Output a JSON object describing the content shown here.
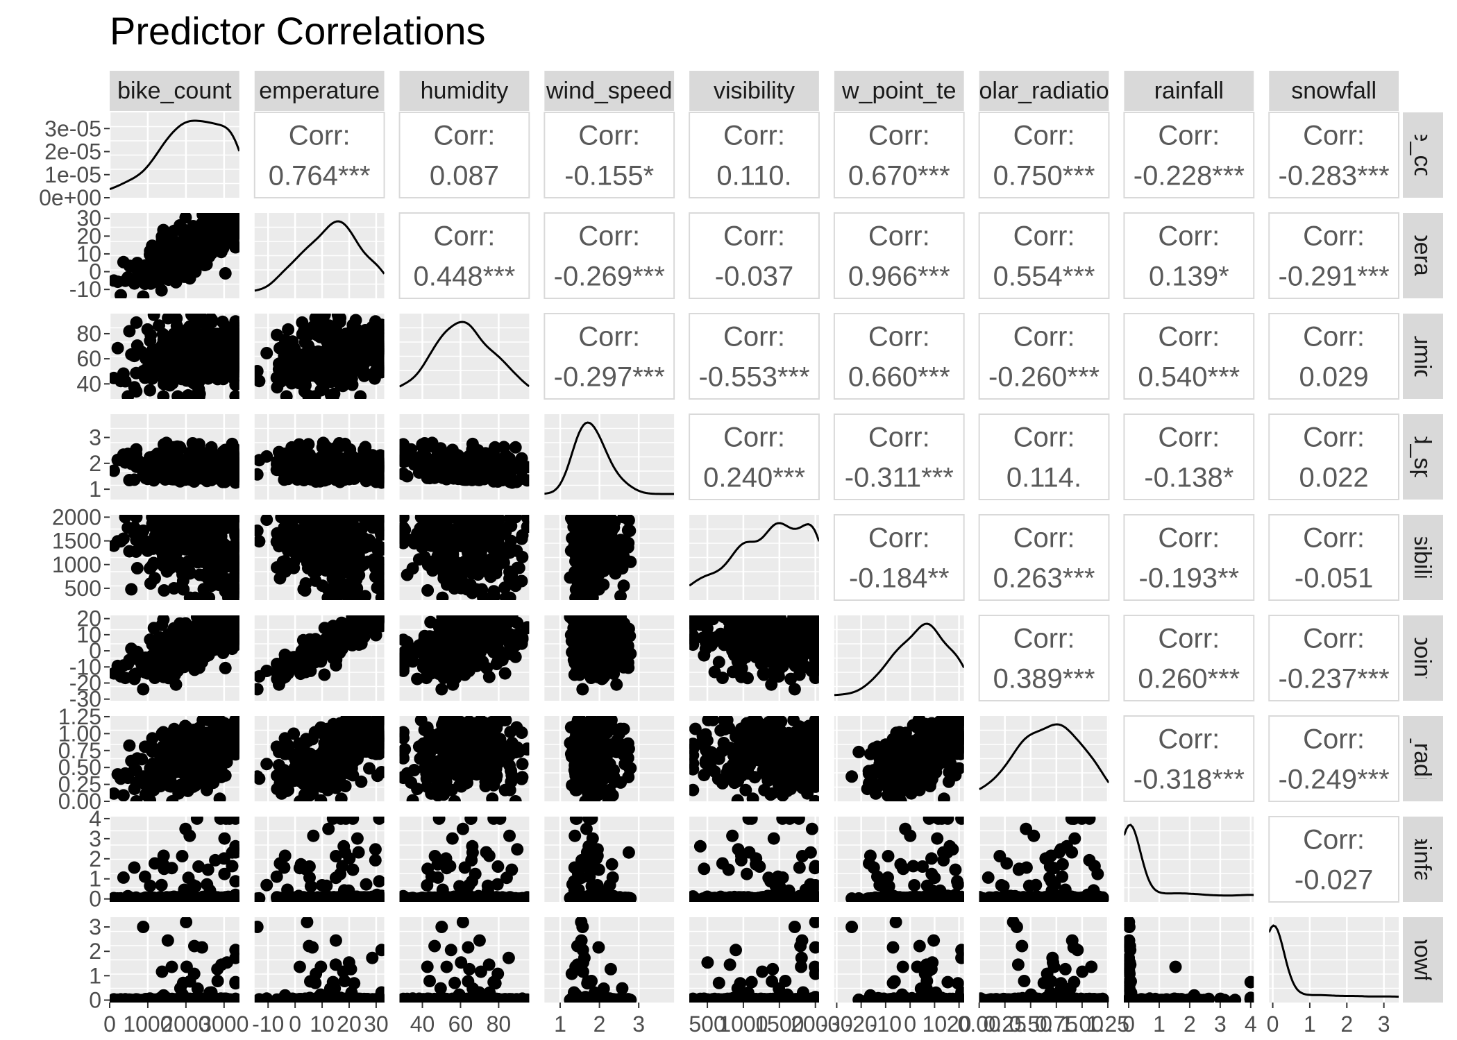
{
  "title": "Predictor Correlations",
  "chart_data": {
    "type": "scatter-matrix",
    "title": "Predictor Correlations",
    "variables": [
      {
        "name": "bike_count",
        "strip_top": "bike_count",
        "strip_right": "ke_cou",
        "ticks": [
          "0",
          "1000",
          "2000",
          "3000"
        ],
        "tick_vals": [
          0,
          1000,
          2000,
          3000
        ],
        "range": [
          0,
          3400
        ],
        "density_yticks": [
          "3e-05",
          "2e-05",
          "1e-05",
          "0e+00"
        ],
        "density_yvals": [
          3e-05,
          2e-05,
          1e-05,
          0
        ],
        "density_ylim": [
          0,
          3.7e-05
        ],
        "ytick_vals": [
          0,
          1000,
          2000,
          3000
        ]
      },
      {
        "name": "temperature",
        "strip_top": "emperature",
        "strip_right": "nperatu",
        "ticks": [
          "-10",
          "0",
          "10",
          "20",
          "30"
        ],
        "tick_vals": [
          -10,
          0,
          10,
          20,
          30
        ],
        "range": [
          -15,
          33
        ],
        "ytick_labels": [
          "30",
          "20",
          "10",
          "0",
          "-10"
        ],
        "ytick_vals": [
          30,
          20,
          10,
          0,
          -10
        ]
      },
      {
        "name": "humidity",
        "strip_top": "humidity",
        "strip_right": "humidit",
        "ticks": [
          "40",
          "60",
          "80"
        ],
        "tick_vals": [
          40,
          60,
          80
        ],
        "range": [
          28,
          96
        ],
        "ytick_labels": [
          "80",
          "60",
          "40"
        ],
        "ytick_vals": [
          80,
          60,
          40
        ]
      },
      {
        "name": "wind_speed",
        "strip_top": "wind_speed",
        "strip_right": "nd_spe",
        "ticks": [
          "1",
          "2",
          "3"
        ],
        "tick_vals": [
          1,
          2,
          3
        ],
        "range": [
          0.6,
          3.9
        ],
        "ytick_labels": [
          "3",
          "2",
          "1"
        ],
        "ytick_vals": [
          3,
          2,
          1
        ]
      },
      {
        "name": "visibility",
        "strip_top": "visibility",
        "strip_right": "visibility",
        "ticks": [
          "500",
          "1000",
          "1500",
          "2000"
        ],
        "tick_vals": [
          500,
          1000,
          1500,
          2000
        ],
        "range": [
          250,
          2050
        ],
        "ytick_labels": [
          "2000",
          "1500",
          "1000",
          "500"
        ],
        "ytick_vals": [
          2000,
          1500,
          1000,
          500
        ]
      },
      {
        "name": "dew_point_temp",
        "strip_top": "w_point_te",
        "strip_right": "_point_",
        "ticks": [
          "-30",
          "-20",
          "-10",
          "0",
          "10",
          "20"
        ],
        "tick_vals": [
          -30,
          -20,
          -10,
          0,
          10,
          20
        ],
        "range": [
          -31,
          22
        ],
        "ytick_labels": [
          "20",
          "10",
          "0",
          "-10",
          "-20",
          "-30"
        ],
        "ytick_vals": [
          20,
          10,
          0,
          -10,
          -20,
          -30
        ]
      },
      {
        "name": "solar_radiation",
        "strip_top": "olar_radiatio",
        "strip_right": "r_radia",
        "ticks": [
          "0.00",
          "0.25",
          "0.50",
          "0.75",
          "1.00",
          "1.25"
        ],
        "tick_vals": [
          0,
          0.25,
          0.5,
          0.75,
          1.0,
          1.25
        ],
        "range": [
          0,
          1.26
        ],
        "ytick_labels": [
          "1.25",
          "1.00",
          "0.75",
          "0.50",
          "0.25",
          "0.00"
        ],
        "ytick_vals": [
          1.25,
          1.0,
          0.75,
          0.5,
          0.25,
          0
        ]
      },
      {
        "name": "rainfall",
        "strip_top": "rainfall",
        "strip_right": "rainfall",
        "ticks": [
          "0",
          "1",
          "2",
          "3",
          "4"
        ],
        "tick_vals": [
          0,
          1,
          2,
          3,
          4
        ],
        "range": [
          -0.15,
          4.1
        ],
        "ytick_labels": [
          "4",
          "3",
          "2",
          "1",
          "0"
        ],
        "ytick_vals": [
          4,
          3,
          2,
          1,
          0
        ]
      },
      {
        "name": "snowfall",
        "strip_top": "snowfall",
        "strip_right": "snowfal",
        "ticks": [
          "0",
          "1",
          "2",
          "3"
        ],
        "tick_vals": [
          0,
          1,
          2,
          3
        ],
        "range": [
          -0.1,
          3.4
        ],
        "ytick_labels": [
          "3",
          "2",
          "1",
          "0"
        ],
        "ytick_vals": [
          3,
          2,
          1,
          0
        ]
      }
    ],
    "corr_label": "Corr:",
    "correlations": [
      [
        "",
        "0.764***",
        "0.087",
        "-0.155*",
        "0.110.",
        "0.670***",
        "0.750***",
        "-0.228***",
        "-0.283***"
      ],
      [
        "",
        "",
        "0.448***",
        "-0.269***",
        "-0.037",
        "0.966***",
        "0.554***",
        "0.139*",
        "-0.291***"
      ],
      [
        "",
        "",
        "",
        "-0.297***",
        "-0.553***",
        "0.660***",
        "-0.260***",
        "0.540***",
        "0.029"
      ],
      [
        "",
        "",
        "",
        "",
        "0.240***",
        "-0.311***",
        "0.114.",
        "-0.138*",
        "0.022"
      ],
      [
        "",
        "",
        "",
        "",
        "",
        "-0.184**",
        "0.263***",
        "-0.193**",
        "-0.051"
      ],
      [
        "",
        "",
        "",
        "",
        "",
        "",
        "0.389***",
        "0.260***",
        "-0.237***"
      ],
      [
        "",
        "",
        "",
        "",
        "",
        "",
        "",
        "-0.318***",
        "-0.249***"
      ],
      [
        "",
        "",
        "",
        "",
        "",
        "",
        "",
        "",
        "-0.027"
      ],
      [
        "",
        "",
        "",
        "",
        "",
        "",
        "",
        "",
        ""
      ]
    ],
    "grid": true,
    "points_per_panel": 300
  }
}
